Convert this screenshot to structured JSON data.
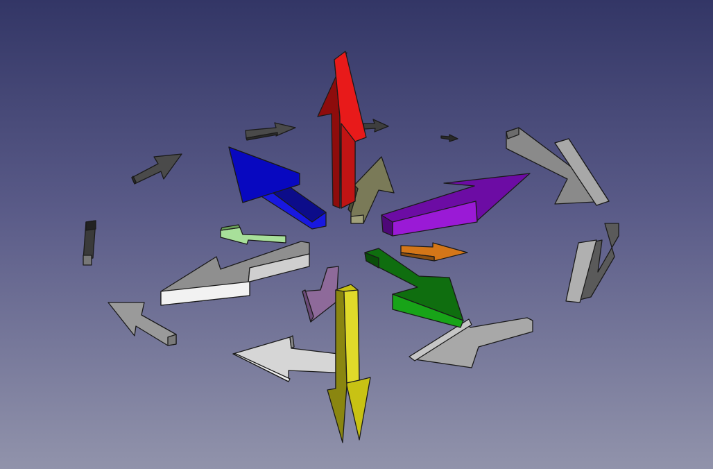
{
  "viewport": {
    "name": "3d-view",
    "background_top": "#333666",
    "background_bottom": "#9193ab"
  },
  "arrows": [
    {
      "id": "red",
      "color": "#e01818"
    },
    {
      "id": "blue",
      "color": "#1414c8"
    },
    {
      "id": "purple",
      "color": "#8a12c8"
    },
    {
      "id": "green",
      "color": "#129212"
    },
    {
      "id": "yellow",
      "color": "#d8d414"
    },
    {
      "id": "mauve",
      "color": "#9a72a6"
    },
    {
      "id": "olive",
      "color": "#7a7a5a"
    },
    {
      "id": "light-green",
      "color": "#9ad48a"
    },
    {
      "id": "orange",
      "color": "#c86a14"
    },
    {
      "id": "white",
      "color": "#f0f0f0"
    },
    {
      "id": "light-gray",
      "color": "#bdbdbd"
    },
    {
      "id": "gray",
      "color": "#8c8c8c"
    },
    {
      "id": "dark-gray",
      "color": "#555555"
    }
  ]
}
